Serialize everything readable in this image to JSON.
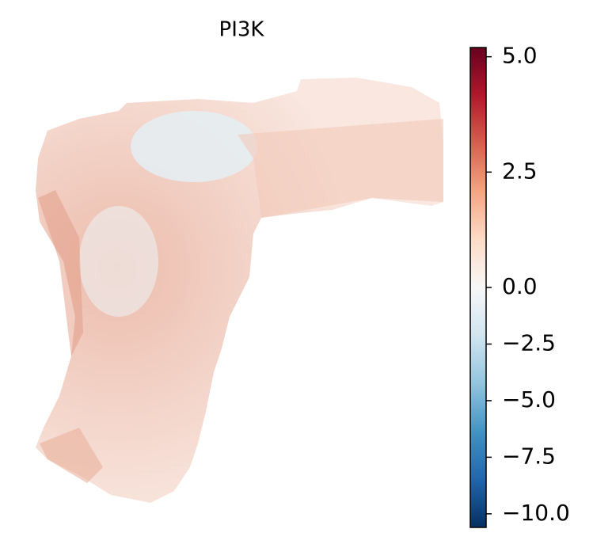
{
  "chart_data": {
    "type": "spatial",
    "title": "PI3K",
    "colormap": [
      "#053061",
      "#2166ac",
      "#4393c3",
      "#92c5de",
      "#d1e5f0",
      "#f7f7f7",
      "#fddbc7",
      "#f4a582",
      "#d6604d",
      "#b2182b",
      "#67001f"
    ],
    "norm": "two-slope",
    "vcenter": 0,
    "clim": [
      -10.6,
      5.2
    ],
    "cticks": [
      {
        "value": 5,
        "label": "5.0"
      },
      {
        "value": 2.5,
        "label": "2.5"
      },
      {
        "value": 0,
        "label": "0.0"
      },
      {
        "value": -2.5,
        "label": "−2.5"
      },
      {
        "value": -5,
        "label": "−5.0"
      },
      {
        "value": -7.5,
        "label": "−7.5"
      },
      {
        "value": -10,
        "label": "−10.0"
      }
    ]
  }
}
